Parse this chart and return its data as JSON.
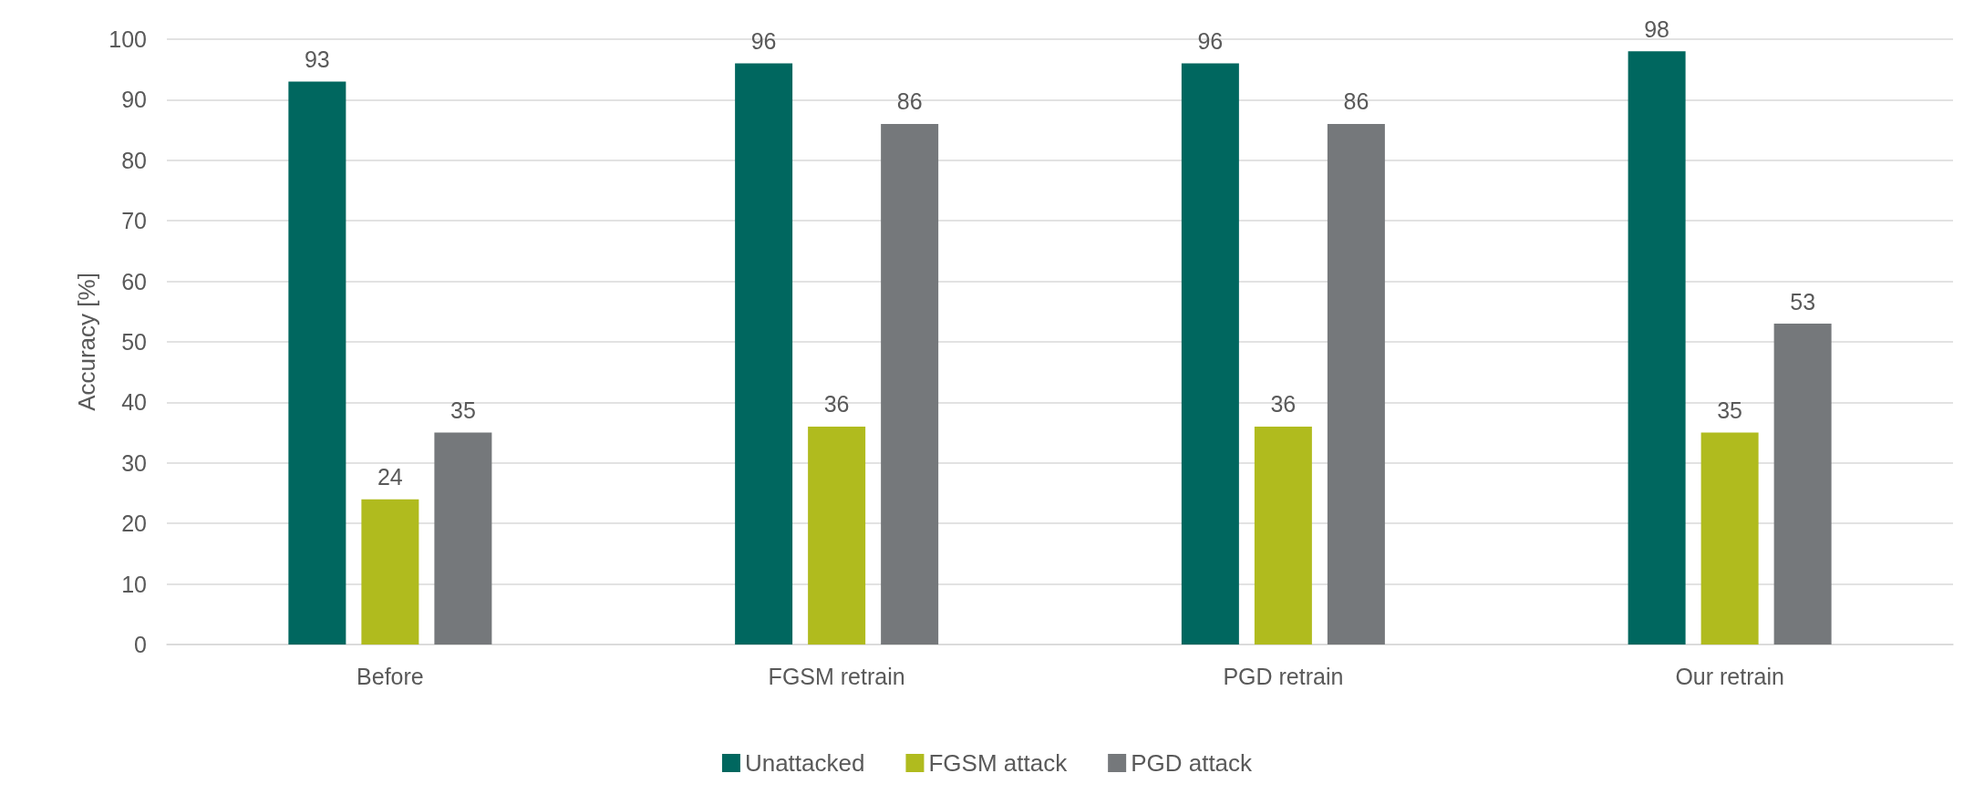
{
  "chart_data": {
    "type": "bar",
    "ylabel": "Accuracy [%]",
    "categories": [
      "Before",
      "FGSM retrain",
      "PGD retrain",
      "Our retrain"
    ],
    "series": [
      {
        "name": "Unattacked",
        "color": "#00675f",
        "values": [
          93,
          96,
          96,
          98
        ]
      },
      {
        "name": "FGSM attack",
        "color": "#b0bb1e",
        "values": [
          24,
          36,
          36,
          35
        ]
      },
      {
        "name": "PGD attack",
        "color": "#75787b",
        "values": [
          35,
          86,
          86,
          53
        ]
      }
    ],
    "ylim": [
      0,
      100
    ],
    "yticks": [
      0,
      10,
      20,
      30,
      40,
      50,
      60,
      70,
      80,
      90,
      100
    ],
    "grid": "y",
    "legend": "bottom",
    "data_labels": true
  }
}
